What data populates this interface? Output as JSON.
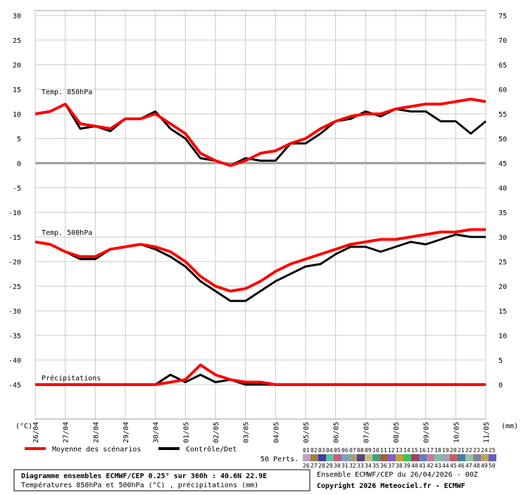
{
  "chart_data": {
    "type": "line",
    "x": [
      0,
      12,
      24,
      36,
      48,
      60,
      72,
      84,
      96,
      108,
      120,
      132,
      144,
      156,
      168,
      180,
      192,
      204,
      216,
      228,
      240,
      252,
      264,
      276,
      288,
      300,
      312,
      324,
      336,
      348,
      360
    ],
    "xlim": [
      0,
      360
    ],
    "xticks": [
      {
        "value": 0,
        "label": "26/04"
      },
      {
        "value": 24,
        "label": "27/04"
      },
      {
        "value": 48,
        "label": "28/04"
      },
      {
        "value": 72,
        "label": "29/04"
      },
      {
        "value": 96,
        "label": "30/04"
      },
      {
        "value": 120,
        "label": "01/05"
      },
      {
        "value": 144,
        "label": "02/05"
      },
      {
        "value": 168,
        "label": "03/05"
      },
      {
        "value": 192,
        "label": "04/05"
      },
      {
        "value": 216,
        "label": "05/05"
      },
      {
        "value": 240,
        "label": "06/05"
      },
      {
        "value": 264,
        "label": "07/05"
      },
      {
        "value": 288,
        "label": "08/05"
      },
      {
        "value": 312,
        "label": "09/05"
      },
      {
        "value": 336,
        "label": "10/05"
      },
      {
        "value": 360,
        "label": "11/05"
      }
    ],
    "ylim": [
      -52,
      31
    ],
    "yticks": [
      30,
      25,
      20,
      15,
      10,
      5,
      0,
      -5,
      -10,
      -15,
      -20,
      -25,
      -30,
      -35,
      -40,
      -45
    ],
    "y2lim": [
      -7,
      76
    ],
    "y2ticks": [
      75,
      70,
      65,
      60,
      55,
      50,
      45,
      40,
      35,
      30,
      25,
      20,
      15,
      10,
      5,
      0
    ],
    "ylabel": "(°C)",
    "y2label": "(mm)",
    "grid": true,
    "groups": [
      {
        "label": "Temp. 850hPa",
        "mean": [
          10,
          10.5,
          12,
          8,
          7.5,
          7,
          9,
          9,
          10,
          8,
          6,
          2,
          0.5,
          -0.5,
          0.5,
          2,
          2.5,
          4,
          5,
          7,
          8.5,
          9.5,
          10,
          10,
          11,
          11.5,
          12,
          12,
          12.5,
          13,
          12.5
        ],
        "control": [
          10,
          10.5,
          12,
          7,
          7.5,
          6.5,
          9,
          9,
          10.5,
          7,
          5,
          1,
          0.5,
          -0.5,
          1,
          0.5,
          0.5,
          4,
          4,
          6,
          8.5,
          9,
          10.5,
          9.5,
          11,
          10.5,
          10.5,
          8.5,
          8.5,
          6,
          8.5
        ]
      },
      {
        "label": "Temp. 500hPa",
        "mean": [
          -16,
          -16.5,
          -18,
          -19,
          -19,
          -17.5,
          -17,
          -16.5,
          -17,
          -18,
          -20,
          -23,
          -25,
          -26,
          -25.5,
          -24,
          -22,
          -20.5,
          -19.5,
          -18.5,
          -17.5,
          -16.5,
          -16,
          -15.5,
          -15.5,
          -15,
          -14.5,
          -14,
          -14,
          -13.5,
          -13.5
        ],
        "control": [
          -16,
          -16.5,
          -18,
          -19.5,
          -19.5,
          -17.5,
          -17,
          -16.5,
          -17.5,
          -19,
          -21,
          -24,
          -26,
          -28,
          -28,
          -26,
          -24,
          -22.5,
          -21,
          -20.5,
          -18.5,
          -17,
          -17,
          -18,
          -17,
          -16,
          -16.5,
          -15.5,
          -14.5,
          -15,
          -15
        ]
      },
      {
        "label": "Précipitations",
        "axis": "y2",
        "mean": [
          0,
          0,
          0,
          0,
          0,
          0,
          0,
          0,
          0,
          0.5,
          1,
          4,
          2,
          1,
          0.5,
          0.5,
          0,
          0,
          0,
          0,
          0,
          0,
          0,
          0,
          0,
          0,
          0,
          0,
          0,
          0,
          0
        ],
        "control": [
          0,
          0,
          0,
          0,
          0,
          0,
          0,
          0,
          0,
          2,
          0.5,
          2,
          0.5,
          1,
          0,
          0,
          0,
          0,
          0,
          0,
          0,
          0,
          0,
          0,
          0,
          0,
          0,
          0,
          0,
          0,
          0
        ]
      }
    ],
    "legend": {
      "mean": {
        "name": "Moyenne des scénarios",
        "color": "#ff0000"
      },
      "control": {
        "name": "Contrôle/Det",
        "color": "#000000"
      }
    },
    "perturbations_label": "50 Perts.",
    "perturbations": [
      "01",
      "02",
      "03",
      "04",
      "05",
      "06",
      "07",
      "08",
      "09",
      "10",
      "11",
      "12",
      "13",
      "14",
      "15",
      "16",
      "17",
      "18",
      "19",
      "20",
      "21",
      "22",
      "23",
      "24",
      "25",
      "26",
      "27",
      "28",
      "29",
      "30",
      "31",
      "32",
      "33",
      "34",
      "35",
      "36",
      "37",
      "38",
      "39",
      "40",
      "41",
      "42",
      "43",
      "44",
      "45",
      "46",
      "47",
      "48",
      "49",
      "50"
    ],
    "perturbation_colors": [
      "#c080c0",
      "#804080",
      "#a04040",
      "#c0a080",
      "#4080c0",
      "#808040",
      "#40a0a0",
      "#c04080",
      "#8080c0",
      "#40c080",
      "#a0a040",
      "#c06040",
      "#6060a0",
      "#a060c0",
      "#40a040",
      "#c0c040",
      "#8040c0",
      "#40c0c0",
      "#c08040",
      "#6080a0",
      "#a0c060",
      "#c04040",
      "#4060c0",
      "#80c040",
      "#a04080",
      "#c0a0c0",
      "#a08040",
      "#4040a0",
      "#60c0a0",
      "#c06080",
      "#80a0c0",
      "#a0a080",
      "#604080",
      "#c0c080",
      "#40a080",
      "#a06040",
      "#8060c0",
      "#c0a040",
      "#40c060",
      "#a04060",
      "#6080c0",
      "#c080a0",
      "#80c0a0",
      "#a0a0c0",
      "#c06060",
      "#4080a0",
      "#a0c0a0",
      "#8080a0",
      "#c0a060",
      "#6060c0"
    ]
  },
  "footer": {
    "title": "Diagramme ensembles ECMWF/CEP 0.25° sur 360h : 40.6N 22.9E",
    "subtitle": "Températures 850hPa et 500hPa (°C) , précipitations (mm)",
    "run": "Ensemble ECMWF/CEP du 26/04/2026 - 00Z",
    "copyright": "Copyright 2026 Meteociel.fr - ECMWF"
  }
}
